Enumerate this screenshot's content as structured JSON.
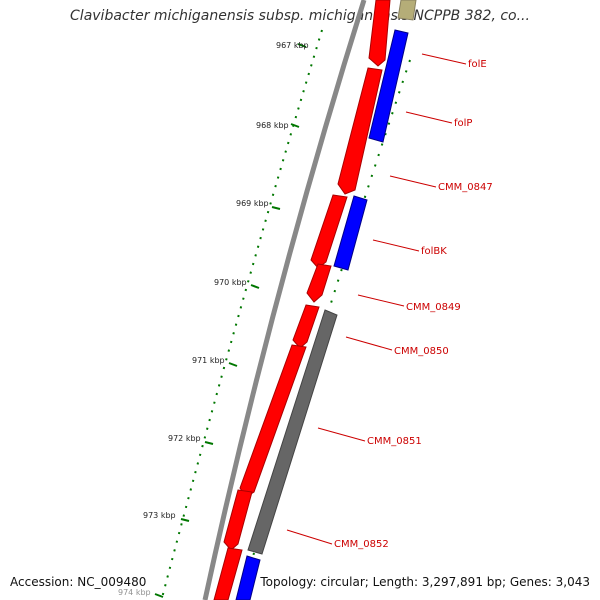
{
  "title": "Clavibacter michiganensis subsp. michiganensis NCPPB 382, co...",
  "footer": {
    "accession": "Accession: NC_009480",
    "stats": "Topology: circular; Length: 3,297,891 bp; Genes: 3,043"
  },
  "colors": {
    "forward_gene": "#ff0000",
    "reverse_gene": "#0000ff",
    "other_gene": "#666666",
    "top_gene": "#b5ad78",
    "backbone": "#888888",
    "tick": "#007700",
    "label": "#cc0000"
  },
  "kbp_ticks": [
    "967 kbp",
    "968 kbp",
    "969 kbp",
    "970 kbp",
    "971 kbp",
    "972 kbp",
    "973 kbp",
    "974 kbp"
  ],
  "gene_labels": [
    "folE",
    "folP",
    "CMM_0847",
    "folBK",
    "CMM_0849",
    "CMM_0850",
    "CMM_0851",
    "CMM_0852"
  ]
}
